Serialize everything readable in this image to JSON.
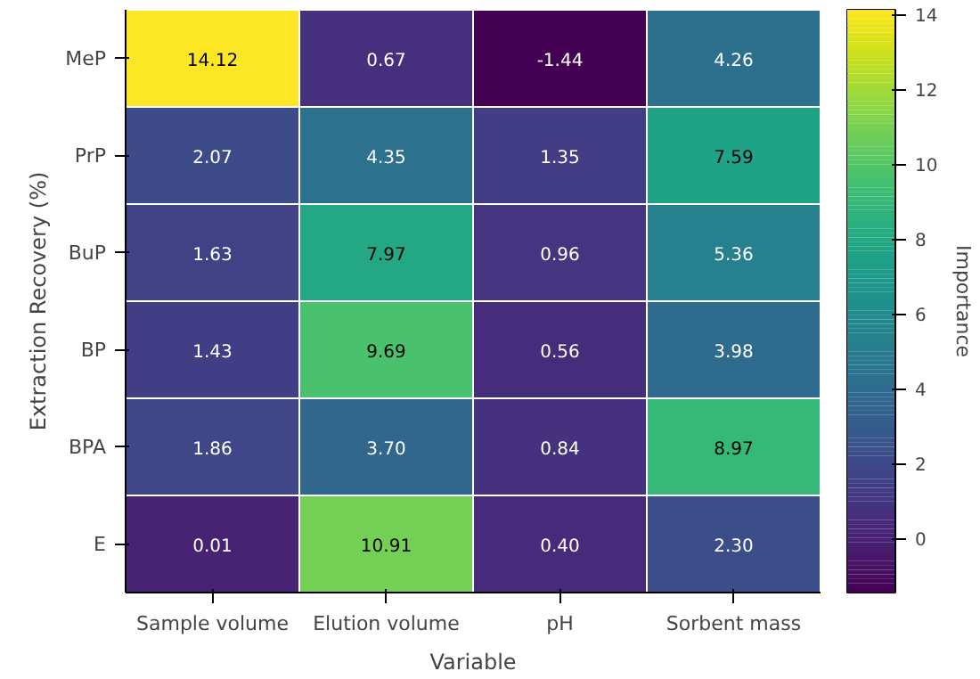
{
  "chart_data": {
    "type": "heatmap",
    "xlabel": "Variable",
    "ylabel": "Extraction Recovery (%)",
    "clabel": "Importance",
    "categories": [
      "Sample volume",
      "Elution volume",
      "pH",
      "Sorbent mass"
    ],
    "y_categories": [
      "MeP",
      "PrP",
      "BuP",
      "BP",
      "BPA",
      "E"
    ],
    "cells": [
      [
        14.12,
        0.67,
        -1.44,
        4.26
      ],
      [
        2.07,
        4.35,
        1.35,
        7.59
      ],
      [
        1.63,
        7.97,
        0.96,
        5.36
      ],
      [
        1.43,
        9.69,
        0.56,
        3.98
      ],
      [
        1.86,
        3.7,
        0.84,
        8.97
      ],
      [
        0.01,
        10.91,
        0.4,
        2.3
      ]
    ],
    "cell_labels": [
      [
        "14.12",
        "0.67",
        "-1.44",
        "4.26"
      ],
      [
        "2.07",
        "4.35",
        "1.35",
        "7.59"
      ],
      [
        "1.63",
        "7.97",
        "0.96",
        "5.36"
      ],
      [
        "1.43",
        "9.69",
        "0.56",
        "3.98"
      ],
      [
        "1.86",
        "3.70",
        "0.84",
        "8.97"
      ],
      [
        "0.01",
        "10.91",
        "0.40",
        "2.30"
      ]
    ],
    "clim": [
      -1.44,
      14.12
    ],
    "cticks": [
      0,
      2,
      4,
      6,
      8,
      10,
      12,
      14
    ]
  }
}
